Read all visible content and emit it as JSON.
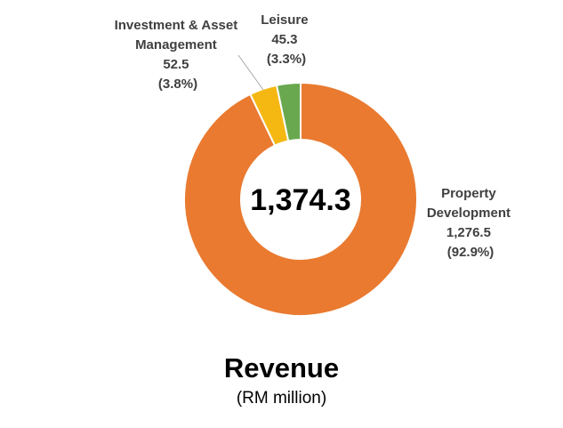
{
  "chart_data": {
    "type": "pie",
    "style": "donut",
    "title": "Revenue",
    "subtitle": "(RM million)",
    "center_label": "1,374.3",
    "slices": [
      {
        "label_lines": [
          "Property",
          "Development"
        ],
        "value": 1276.5,
        "value_label": "1,276.5",
        "percent_label": "(92.9%)",
        "color": "#E97A30"
      },
      {
        "label_lines": [
          "Investment & Asset",
          "Management"
        ],
        "value": 52.5,
        "value_label": "52.5",
        "percent_label": "(3.8%)",
        "color": "#F5B813"
      },
      {
        "label_lines": [
          "Leisure"
        ],
        "value": 45.3,
        "value_label": "45.3",
        "percent_label": "(3.3%)",
        "color": "#6AA84F"
      }
    ],
    "legend": "none"
  }
}
